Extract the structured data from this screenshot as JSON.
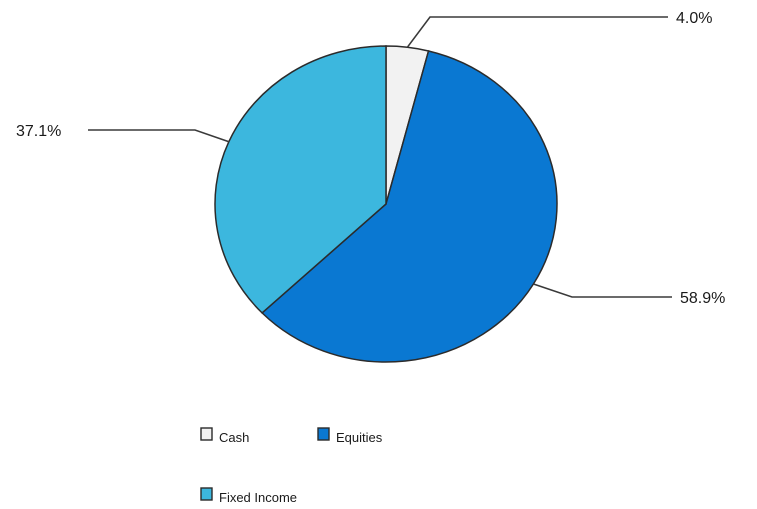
{
  "chart_data": {
    "type": "pie",
    "title": "",
    "start_angle_deg": 0,
    "direction": "clockwise",
    "slices": [
      {
        "name": "Cash",
        "value": 4.0,
        "label": "4.0%",
        "color": "#f2f2f2"
      },
      {
        "name": "Equities",
        "value": 58.9,
        "label": "58.9%",
        "color": "#0a78d2"
      },
      {
        "name": "Fixed Income",
        "value": 37.1,
        "label": "37.1%",
        "color": "#3cb7de"
      }
    ],
    "legend": {
      "position": "bottom",
      "entries": [
        "Cash",
        "Equities",
        "Fixed Income"
      ]
    }
  }
}
